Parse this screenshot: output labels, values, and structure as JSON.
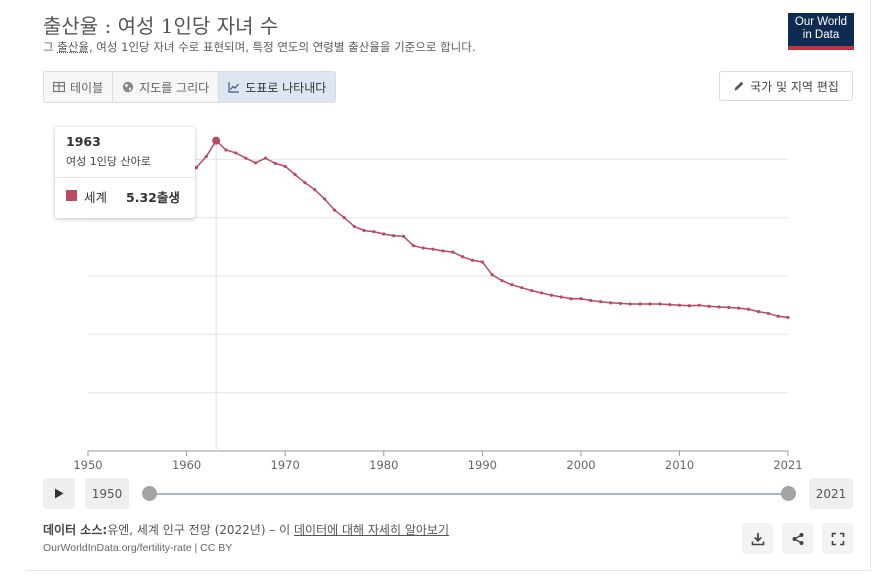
{
  "header": {
    "title": "출산율 : 여성 1인당 자녀 수",
    "subtitle_pre": "그 ",
    "subtitle_term": "출산율",
    "subtitle_post": ", 여성 1인당 자녀 수로 표현되며, 특정 연도의 연령별 출산율을 기준으로 합니다.",
    "logo_line1": "Our World",
    "logo_line2": "in Data"
  },
  "tabs": [
    {
      "label": "테이블",
      "icon": "table-icon"
    },
    {
      "label": "지도를 그리다",
      "icon": "globe-icon"
    },
    {
      "label": "도표로 나타내다",
      "icon": "line-chart-icon",
      "active": true
    }
  ],
  "edit_button": {
    "label": "국가 및 지역 편집",
    "icon": "pencil-icon"
  },
  "tooltip": {
    "year": "1963",
    "description": "여성 1인당 산아로",
    "series": "세계",
    "value": "5.32출생"
  },
  "timeline": {
    "start": "1950",
    "end": "2021",
    "play_icon": "play-icon"
  },
  "footer": {
    "source_label": "데이터 소스:",
    "source_text": "유엔, 세계 인구 전망 (2022년) – 이 ",
    "source_link": "데이터에 대해 자세히 알아보기",
    "url": "OurWorldInData.org/fertility-rate | CC BY",
    "icons": [
      "download-icon",
      "share-icon",
      "fullscreen-icon"
    ]
  },
  "colors": {
    "series": "#b94a5f",
    "grid": "#e6e6e6",
    "logo_bg": "#0e2b52",
    "logo_accent": "#c4343d"
  },
  "chart_data": {
    "type": "line",
    "title": "출산율 : 여성 1인당 자녀 수",
    "xlabel": "",
    "ylabel": "",
    "xlim": [
      1950,
      2021
    ],
    "ylim": [
      0,
      5.4
    ],
    "x_ticks": [
      1950,
      1960,
      1970,
      1980,
      1990,
      2000,
      2010,
      2021
    ],
    "grid": true,
    "highlight_year": 1963,
    "series": [
      {
        "name": "세계",
        "x": [
          1950,
          1951,
          1952,
          1953,
          1954,
          1955,
          1956,
          1957,
          1958,
          1959,
          1960,
          1961,
          1962,
          1963,
          1964,
          1965,
          1966,
          1967,
          1968,
          1969,
          1970,
          1971,
          1972,
          1973,
          1974,
          1975,
          1976,
          1977,
          1978,
          1979,
          1980,
          1981,
          1982,
          1983,
          1984,
          1985,
          1986,
          1987,
          1988,
          1989,
          1990,
          1991,
          1992,
          1993,
          1994,
          1995,
          1996,
          1997,
          1998,
          1999,
          2000,
          2001,
          2002,
          2003,
          2004,
          2005,
          2006,
          2007,
          2008,
          2009,
          2010,
          2011,
          2012,
          2013,
          2014,
          2015,
          2016,
          2017,
          2018,
          2019,
          2020,
          2021
        ],
        "values": [
          4.86,
          4.91,
          4.97,
          4.99,
          5.0,
          5.01,
          5.0,
          5.02,
          4.99,
          4.72,
          4.7,
          4.86,
          5.05,
          5.32,
          5.16,
          5.11,
          5.02,
          4.94,
          5.02,
          4.93,
          4.88,
          4.74,
          4.6,
          4.48,
          4.32,
          4.13,
          4.0,
          3.85,
          3.78,
          3.76,
          3.72,
          3.69,
          3.68,
          3.52,
          3.48,
          3.46,
          3.43,
          3.41,
          3.33,
          3.27,
          3.24,
          3.02,
          2.92,
          2.85,
          2.8,
          2.75,
          2.71,
          2.67,
          2.64,
          2.61,
          2.61,
          2.58,
          2.56,
          2.54,
          2.53,
          2.52,
          2.52,
          2.52,
          2.52,
          2.51,
          2.5,
          2.49,
          2.5,
          2.48,
          2.47,
          2.46,
          2.45,
          2.43,
          2.39,
          2.36,
          2.31,
          2.29
        ]
      }
    ]
  }
}
